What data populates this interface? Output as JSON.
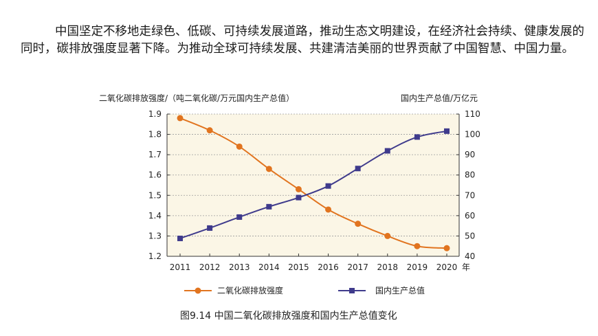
{
  "paragraph": "中国坚定不移地走绿色、低碳、可持续发展道路，推动生态文明建设，在经济社会持续、健康发展的同时，碳排放强度显著下降。为推动全球可持续发展、共建清洁美丽的世界贡献了中国智慧、中国力量。",
  "caption": "图9.14  中国二氧化碳排放强度和国内生产总值变化",
  "colors": {
    "plot_bg": "#fbf6e6",
    "series1": "#e1741f",
    "series2": "#3f3b8c"
  },
  "chart_data": {
    "type": "line",
    "x": [
      "2011",
      "2012",
      "2013",
      "2014",
      "2015",
      "2016",
      "2017",
      "2018",
      "2019",
      "2020"
    ],
    "x_unit": "年",
    "ylabel_left": "二氧化碳排放强度/（吨二氧化碳/万元国内生产总值）",
    "ylabel_right": "国内生产总值/万亿元",
    "ylim_left": [
      1.2,
      1.9
    ],
    "yticks_left": [
      "1.2",
      "1.3",
      "1.4",
      "1.5",
      "1.6",
      "1.7",
      "1.8",
      "1.9"
    ],
    "ylim_right": [
      40,
      110
    ],
    "yticks_right": [
      "40",
      "50",
      "60",
      "70",
      "80",
      "90",
      "100",
      "110"
    ],
    "series": [
      {
        "name": "二氧化碳排放强度",
        "axis": "left",
        "marker": "circle",
        "values": [
          1.88,
          1.82,
          1.74,
          1.63,
          1.53,
          1.43,
          1.36,
          1.3,
          1.25,
          1.24
        ]
      },
      {
        "name": "国内生产总值",
        "axis": "right",
        "marker": "square",
        "values": [
          48.8,
          53.9,
          59.3,
          64.4,
          68.9,
          74.6,
          83.2,
          91.9,
          98.7,
          101.6
        ]
      }
    ],
    "legend_position": "bottom"
  }
}
